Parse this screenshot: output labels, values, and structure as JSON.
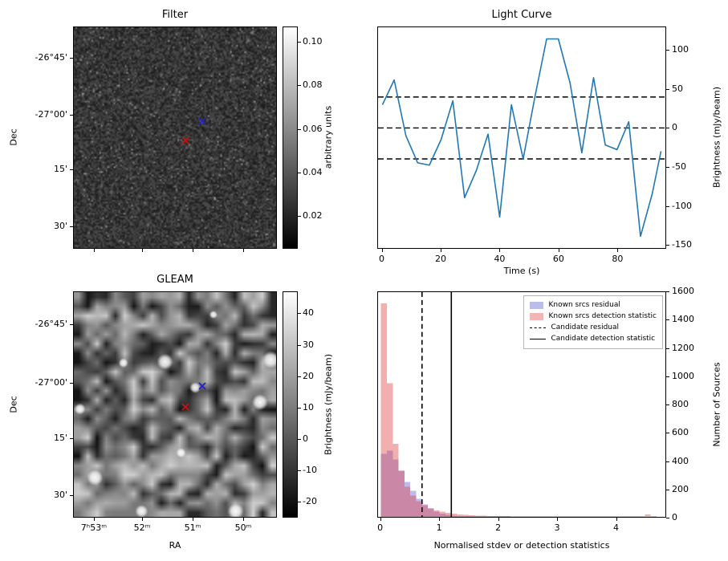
{
  "figure": {
    "background": "#ffffff"
  },
  "panels": {
    "filter": {
      "title": "Filter",
      "ylabel": "Dec",
      "yticks": {
        "labels": [
          "-26°45'",
          "-27°00'",
          "15'",
          "30'"
        ],
        "fracs": [
          0.141,
          0.397,
          0.643,
          0.899
        ]
      },
      "xticks": {
        "labels": [],
        "fracs": [
          0.102,
          0.339,
          0.587,
          0.835
        ]
      },
      "markers": [
        {
          "id": "blue-x",
          "shape": "x",
          "color": "#2222cc",
          "fx": 0.634,
          "fy": 0.415
        },
        {
          "id": "red-x",
          "shape": "x",
          "color": "#cc1111",
          "fx": 0.551,
          "fy": 0.502
        }
      ],
      "colorbar": {
        "label": "arbitrary units",
        "tick_labels": [
          "0.10",
          "0.08",
          "0.06",
          "0.04",
          "0.02"
        ],
        "tick_values": [
          0.1,
          0.08,
          0.06,
          0.04,
          0.02
        ],
        "vmin": 0.005,
        "vmax": 0.107
      }
    },
    "gleam": {
      "title": "GLEAM",
      "xlabel": "RA",
      "ylabel": "Dec",
      "xticks": {
        "labels": [
          "7ʰ53ᵐ",
          "52ᵐ",
          "51ᵐ",
          "50ᵐ"
        ],
        "fracs": [
          0.102,
          0.339,
          0.587,
          0.835
        ]
      },
      "yticks": {
        "labels": [
          "-26°45'",
          "-27°00'",
          "15'",
          "30'"
        ],
        "fracs": [
          0.145,
          0.404,
          0.649,
          0.901
        ]
      },
      "markers": [
        {
          "id": "blue-x",
          "shape": "x",
          "color": "#2222cc",
          "fx": 0.634,
          "fy": 0.408
        },
        {
          "id": "red-x",
          "shape": "x",
          "color": "#cc1111",
          "fx": 0.551,
          "fy": 0.5
        }
      ],
      "colorbar": {
        "label": "Brightness (mJy/beam)",
        "tick_labels": [
          "40",
          "30",
          "20",
          "10",
          "0",
          "-10",
          "-20"
        ],
        "tick_values": [
          40,
          30,
          20,
          10,
          0,
          -10,
          -20
        ],
        "vmin": -25,
        "vmax": 47
      }
    }
  },
  "chart_data": [
    {
      "type": "line",
      "title": "Light Curve",
      "xlabel": "Time (s)",
      "ylabel": "Brightness (mJy/beam)",
      "ylabel_side": "right",
      "xlim": [
        -1.5,
        96.5
      ],
      "ylim": [
        -155,
        130
      ],
      "xticks": [
        0,
        20,
        40,
        60,
        80
      ],
      "yticks": [
        100,
        50,
        0,
        -50,
        -100,
        -150
      ],
      "x": [
        0,
        4,
        8,
        12,
        16,
        20,
        24,
        28,
        32,
        36,
        40,
        44,
        48,
        52,
        56,
        60,
        64,
        68,
        72,
        76,
        80,
        84,
        88,
        92,
        95
      ],
      "y": [
        30,
        62,
        -10,
        -45,
        -48,
        -15,
        35,
        -90,
        -55,
        -8,
        -115,
        30,
        -40,
        40,
        115,
        115,
        58,
        -32,
        65,
        -22,
        -28,
        8,
        -140,
        -85,
        -30
      ],
      "threshold_lines": [
        40,
        0,
        -40
      ],
      "line_color": "#1f77b4",
      "grid": false
    },
    {
      "type": "bar",
      "title": "",
      "xlabel": "Normalised stdev or detection statistics",
      "ylabel": "Number of Sources",
      "ylabel_side": "right",
      "xlim": [
        -0.05,
        4.85
      ],
      "ylim": [
        0,
        1600
      ],
      "xticks": [
        0,
        1,
        2,
        3,
        4
      ],
      "yticks": [
        0,
        200,
        400,
        600,
        800,
        1000,
        1200,
        1400,
        1600
      ],
      "bin_start": 0,
      "bin_width": 0.1,
      "legend_position": "upper right",
      "series": [
        {
          "name": "Known srcs residual",
          "color": "#4040d0",
          "alpha": 0.35,
          "values": [
            450,
            470,
            410,
            330,
            250,
            185,
            130,
            90,
            58,
            36,
            22,
            14,
            9,
            6,
            4,
            3,
            2,
            2,
            1,
            1,
            1,
            1,
            0,
            0,
            0,
            0,
            0,
            0,
            0,
            0,
            0,
            0,
            0,
            0,
            0,
            0,
            0,
            0,
            0,
            0,
            0,
            0,
            0,
            0,
            0,
            0,
            0,
            0
          ]
        },
        {
          "name": "Known srcs detection statistic",
          "color": "#e04040",
          "alpha": 0.42,
          "values": [
            1520,
            950,
            520,
            330,
            215,
            150,
            110,
            82,
            62,
            47,
            36,
            28,
            22,
            17,
            14,
            11,
            9,
            8,
            7,
            6,
            5,
            5,
            4,
            4,
            3,
            3,
            3,
            2,
            2,
            2,
            2,
            2,
            2,
            1,
            1,
            1,
            1,
            1,
            1,
            1,
            1,
            1,
            1,
            1,
            1,
            18,
            2,
            0
          ]
        }
      ],
      "vlines": [
        {
          "name": "Candidate residual",
          "x": 0.7,
          "style": "dashed",
          "color": "#000000"
        },
        {
          "name": "Candidate detection statistic",
          "x": 1.2,
          "style": "solid",
          "color": "#000000"
        }
      ]
    }
  ]
}
